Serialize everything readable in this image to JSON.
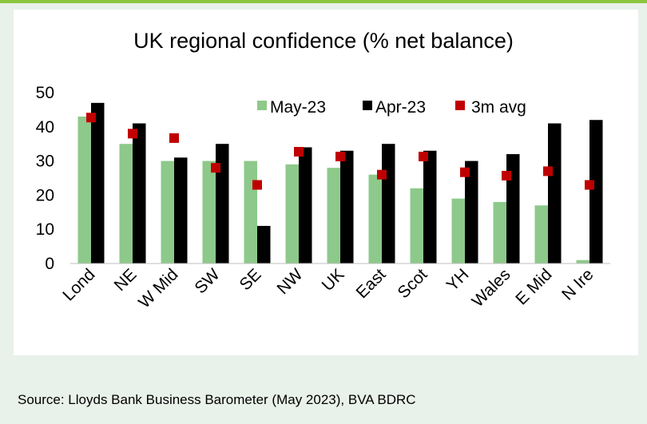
{
  "chart_data": {
    "type": "bar",
    "title": "UK regional confidence (% net balance)",
    "categories": [
      "Lond",
      "NE",
      "W Mid",
      "SW",
      "SE",
      "NW",
      "UK",
      "East",
      "Scot",
      "YH",
      "Wales",
      "E Mid",
      "N Ire"
    ],
    "series": [
      {
        "name": "May-23",
        "type": "bar",
        "color": "#8dc98a",
        "values": [
          43,
          35,
          30,
          30,
          30,
          29,
          28,
          26,
          22,
          19,
          18,
          17,
          1
        ]
      },
      {
        "name": "Apr-23",
        "type": "bar",
        "color": "#000000",
        "values": [
          47,
          41,
          31,
          35,
          11,
          34,
          33,
          35,
          33,
          30,
          32,
          41,
          42
        ]
      },
      {
        "name": "3m avg",
        "type": "scatter",
        "color": "#c00000",
        "values": [
          42.7,
          38,
          36.7,
          28,
          23,
          32.7,
          31.3,
          26,
          31.3,
          26.7,
          25.7,
          27,
          23
        ]
      }
    ],
    "ylim": [
      0,
      50
    ],
    "yticks": [
      0,
      10,
      20,
      30,
      40,
      50
    ],
    "legend": "top-right",
    "grid": false
  },
  "footer": {
    "source": "Source: Lloyds Bank Business Barometer (May 2023), BVA BDRC"
  }
}
